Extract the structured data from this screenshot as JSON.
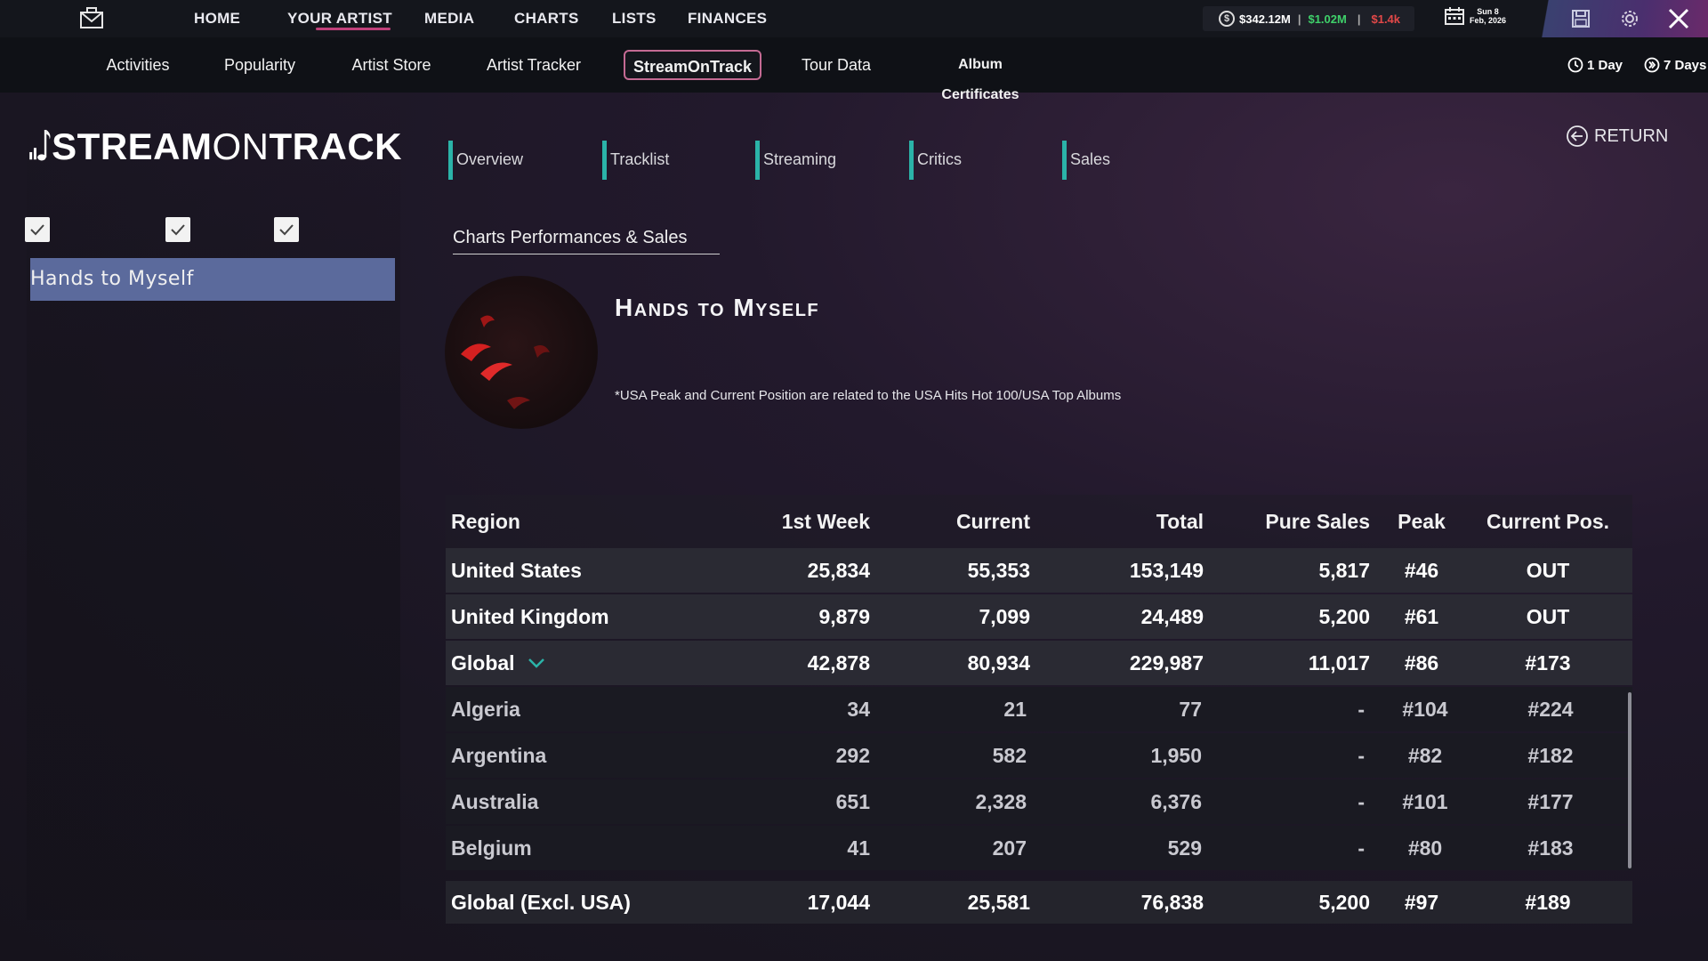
{
  "topnav": {
    "items": [
      "HOME",
      "YOUR ARTIST",
      "MEDIA",
      "CHARTS",
      "LISTS",
      "FINANCES"
    ],
    "active": "YOUR ARTIST"
  },
  "money": {
    "balance": "$342.12M",
    "income": "$1.02M",
    "expense": "$1.4k",
    "colors": {
      "income": "#3fd06a",
      "expense": "#e24848"
    }
  },
  "date": {
    "line1": "Sun 8",
    "line2": "Feb, 2026"
  },
  "subnav": {
    "items": [
      "Activities",
      "Popularity",
      "Artist Store",
      "Artist Tracker",
      "StreamOnTrack",
      "Tour Data",
      "Album Certificates"
    ],
    "active": "StreamOnTrack",
    "time_1day": "1 Day",
    "time_7days": "7 Days"
  },
  "logo": {
    "text_bold": "STREAM",
    "text_thin": "ON",
    "text_bold2": "TRACK"
  },
  "sidebar": {
    "selected_song": "Hands to Myself"
  },
  "section_tabs": [
    "Overview",
    "Tracklist",
    "Streaming",
    "Critics",
    "Sales"
  ],
  "return_label": "RETURN",
  "content": {
    "subtitle": "Charts Performances & Sales",
    "song_title": "Hands to Myself",
    "note": "*USA Peak and Current Position are related to the USA Hits Hot 100/USA Top Albums"
  },
  "table": {
    "headers": [
      "Region",
      "1st Week",
      "Current",
      "Total",
      "Pure Sales",
      "Peak",
      "Current Pos."
    ],
    "main_rows": [
      [
        "United States",
        "25,834",
        "55,353",
        "153,149",
        "5,817",
        "#46",
        "OUT"
      ],
      [
        "United Kingdom",
        "9,879",
        "7,099",
        "24,489",
        "5,200",
        "#61",
        "OUT"
      ],
      [
        "Global",
        "42,878",
        "80,934",
        "229,987",
        "11,017",
        "#86",
        "#173"
      ]
    ],
    "sub_rows": [
      [
        "Algeria",
        "34",
        "21",
        "77",
        "-",
        "#104",
        "#224"
      ],
      [
        "Argentina",
        "292",
        "582",
        "1,950",
        "-",
        "#82",
        "#182"
      ],
      [
        "Australia",
        "651",
        "2,328",
        "6,376",
        "-",
        "#101",
        "#177"
      ],
      [
        "Belgium",
        "41",
        "207",
        "529",
        "-",
        "#80",
        "#183"
      ]
    ],
    "total_row": [
      "Global (Excl. USA)",
      "17,044",
      "25,581",
      "76,838",
      "5,200",
      "#97",
      "#189"
    ]
  },
  "accent_colors": {
    "tab_bar": "#2bb3a8",
    "selected_item": "#5b6a9c",
    "active_outline": "#c46a93"
  }
}
